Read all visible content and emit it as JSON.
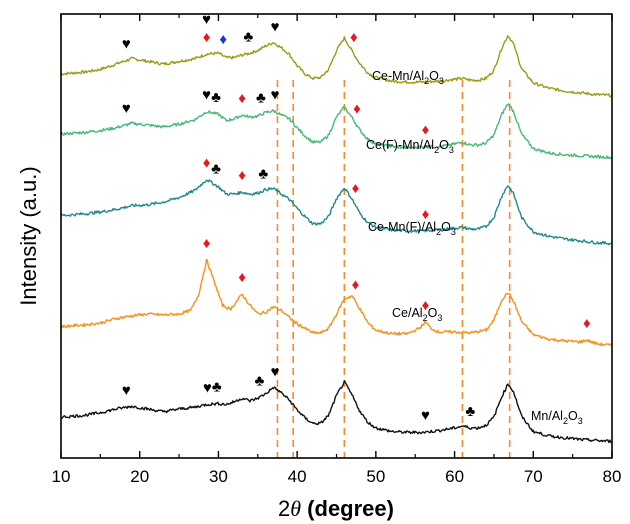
{
  "chart_data": {
    "type": "line",
    "xlabel": "2θ (degree)",
    "xlabel_parts": {
      "symbol_prefix": "2",
      "symbol": "θ",
      "rest": " (degree)"
    },
    "ylabel": "Intensity (a.u.)",
    "xlim": [
      10,
      80
    ],
    "x_ticks": [
      10,
      20,
      30,
      40,
      50,
      60,
      70,
      80
    ],
    "y_ticks": [],
    "grid": false,
    "legend": "none (inline series labels)",
    "reference_lines": {
      "style": "dashed",
      "color": "#F28A2E",
      "x": [
        37.5,
        39.5,
        46.0,
        61.0,
        67.0
      ]
    },
    "series": [
      {
        "name": "Ce-Mn/Al2O3",
        "label_parts": [
          "Ce-Mn/Al",
          "2",
          "O",
          "3"
        ],
        "color": "#9A9B17",
        "baseline": 38,
        "points": [
          [
            10,
            29
          ],
          [
            13,
            31
          ],
          [
            15,
            34
          ],
          [
            17,
            40
          ],
          [
            19,
            46
          ],
          [
            21,
            43
          ],
          [
            23,
            40
          ],
          [
            25,
            43
          ],
          [
            27,
            46
          ],
          [
            28.5,
            51
          ],
          [
            30,
            52
          ],
          [
            31,
            47
          ],
          [
            32,
            47
          ],
          [
            33,
            50
          ],
          [
            34,
            52
          ],
          [
            35,
            55
          ],
          [
            36,
            60
          ],
          [
            37,
            64
          ],
          [
            38,
            58
          ],
          [
            39,
            51
          ],
          [
            40,
            38
          ],
          [
            41,
            29
          ],
          [
            42,
            24
          ],
          [
            43,
            25
          ],
          [
            44,
            34
          ],
          [
            45,
            55
          ],
          [
            46,
            69
          ],
          [
            47,
            54
          ],
          [
            48,
            40
          ],
          [
            49,
            30
          ],
          [
            50,
            25
          ],
          [
            52,
            21
          ],
          [
            54,
            20
          ],
          [
            56,
            20
          ],
          [
            58,
            21
          ],
          [
            60,
            23
          ],
          [
            61,
            24
          ],
          [
            62,
            22
          ],
          [
            63,
            22
          ],
          [
            64,
            24
          ],
          [
            65,
            33
          ],
          [
            66,
            58
          ],
          [
            66.8,
            72
          ],
          [
            67.5,
            62
          ],
          [
            68.5,
            35
          ],
          [
            70,
            19
          ],
          [
            72,
            13
          ],
          [
            74,
            10
          ],
          [
            76,
            8
          ],
          [
            78,
            6
          ],
          [
            80,
            5
          ]
        ]
      },
      {
        "name": "Ce(F)-Mn/Al2O3",
        "label_parts": [
          "Ce(F)-Mn/Al",
          "2",
          "O",
          "3"
        ],
        "color": "#4AB77A",
        "baseline": 38,
        "points": [
          [
            10,
            31
          ],
          [
            13,
            33
          ],
          [
            15,
            35
          ],
          [
            17,
            38
          ],
          [
            19,
            43
          ],
          [
            21,
            41
          ],
          [
            23,
            39
          ],
          [
            25,
            42
          ],
          [
            27,
            47
          ],
          [
            28.5,
            56
          ],
          [
            30,
            53
          ],
          [
            31,
            46
          ],
          [
            32,
            48
          ],
          [
            33,
            52
          ],
          [
            34,
            50
          ],
          [
            35,
            51
          ],
          [
            36,
            55
          ],
          [
            37,
            57
          ],
          [
            38,
            52
          ],
          [
            39,
            48
          ],
          [
            40,
            38
          ],
          [
            41,
            29
          ],
          [
            42,
            22
          ],
          [
            43,
            22
          ],
          [
            44,
            30
          ],
          [
            45,
            50
          ],
          [
            46,
            61
          ],
          [
            47,
            49
          ],
          [
            48,
            35
          ],
          [
            49,
            25
          ],
          [
            50,
            20
          ],
          [
            52,
            17
          ],
          [
            54,
            16
          ],
          [
            56,
            17
          ],
          [
            58,
            17
          ],
          [
            60,
            20
          ],
          [
            61,
            22
          ],
          [
            62,
            19
          ],
          [
            63,
            19
          ],
          [
            64,
            21
          ],
          [
            65,
            30
          ],
          [
            66,
            53
          ],
          [
            66.8,
            65
          ],
          [
            67.5,
            56
          ],
          [
            68.5,
            31
          ],
          [
            70,
            15
          ],
          [
            72,
            10
          ],
          [
            74,
            8
          ],
          [
            76,
            7
          ],
          [
            78,
            6
          ],
          [
            80,
            5
          ]
        ]
      },
      {
        "name": "Ce-Mn(F)/Al2O3",
        "label_parts": [
          "Ce-Mn(F)/Al",
          "2",
          "O",
          "3"
        ],
        "color": "#1F8A8C",
        "baseline": 38,
        "points": [
          [
            10,
            36
          ],
          [
            13,
            38
          ],
          [
            15,
            40
          ],
          [
            17,
            43
          ],
          [
            19,
            47
          ],
          [
            21,
            48
          ],
          [
            23,
            51
          ],
          [
            25,
            56
          ],
          [
            27,
            64
          ],
          [
            28.5,
            76
          ],
          [
            30,
            68
          ],
          [
            31,
            60
          ],
          [
            32,
            60
          ],
          [
            33,
            62
          ],
          [
            34,
            60
          ],
          [
            35,
            61
          ],
          [
            36,
            65
          ],
          [
            37,
            66
          ],
          [
            38,
            60
          ],
          [
            39,
            54
          ],
          [
            40,
            44
          ],
          [
            41,
            35
          ],
          [
            42,
            27
          ],
          [
            43,
            27
          ],
          [
            44,
            35
          ],
          [
            45,
            55
          ],
          [
            46,
            67
          ],
          [
            47,
            54
          ],
          [
            48,
            38
          ],
          [
            49,
            28
          ],
          [
            50,
            23
          ],
          [
            52,
            20
          ],
          [
            54,
            19
          ],
          [
            56,
            19
          ],
          [
            58,
            20
          ],
          [
            60,
            22
          ],
          [
            61,
            23
          ],
          [
            62,
            21
          ],
          [
            63,
            21
          ],
          [
            64,
            24
          ],
          [
            65,
            34
          ],
          [
            66,
            58
          ],
          [
            66.8,
            70
          ],
          [
            67.5,
            60
          ],
          [
            68.5,
            34
          ],
          [
            70,
            18
          ],
          [
            72,
            13
          ],
          [
            74,
            10
          ],
          [
            76,
            8
          ],
          [
            78,
            6
          ],
          [
            80,
            5
          ]
        ]
      },
      {
        "name": "Ce/Al2O3",
        "label_parts": [
          "Ce/Al",
          "2",
          "O",
          "3"
        ],
        "color": "#F7901E",
        "baseline": 38,
        "points": [
          [
            10,
            26
          ],
          [
            13,
            28
          ],
          [
            15,
            30
          ],
          [
            17,
            35
          ],
          [
            19,
            38
          ],
          [
            21,
            40
          ],
          [
            23,
            39
          ],
          [
            25,
            40
          ],
          [
            26.5,
            44
          ],
          [
            27.5,
            62
          ],
          [
            28.5,
            100
          ],
          [
            29.5,
            75
          ],
          [
            30.5,
            50
          ],
          [
            31.5,
            45
          ],
          [
            32.5,
            56
          ],
          [
            33,
            62
          ],
          [
            33.8,
            52
          ],
          [
            35,
            40
          ],
          [
            36,
            42
          ],
          [
            37,
            48
          ],
          [
            38,
            44
          ],
          [
            39,
            36
          ],
          [
            40,
            29
          ],
          [
            41,
            24
          ],
          [
            42,
            19
          ],
          [
            43,
            19
          ],
          [
            44,
            24
          ],
          [
            45,
            40
          ],
          [
            46,
            57
          ],
          [
            47,
            60
          ],
          [
            48,
            45
          ],
          [
            49,
            30
          ],
          [
            50,
            22
          ],
          [
            52,
            18
          ],
          [
            54,
            18
          ],
          [
            55.5,
            24
          ],
          [
            56.3,
            31
          ],
          [
            57,
            24
          ],
          [
            58,
            20
          ],
          [
            60,
            20
          ],
          [
            62,
            19
          ],
          [
            64,
            22
          ],
          [
            65,
            33
          ],
          [
            66,
            56
          ],
          [
            66.8,
            64
          ],
          [
            67.5,
            54
          ],
          [
            68.5,
            32
          ],
          [
            70,
            17
          ],
          [
            72,
            12
          ],
          [
            74,
            10
          ],
          [
            76,
            9
          ],
          [
            76.8,
            11
          ],
          [
            78,
            7
          ],
          [
            80,
            5
          ]
        ]
      },
      {
        "name": "Mn/Al2O3",
        "label_parts": [
          "Mn/Al",
          "2",
          "O",
          "3"
        ],
        "color": "#111111",
        "baseline": 38,
        "points": [
          [
            10,
            31
          ],
          [
            13,
            33
          ],
          [
            15,
            36
          ],
          [
            17,
            40
          ],
          [
            19,
            43
          ],
          [
            21,
            40
          ],
          [
            23,
            37
          ],
          [
            25,
            40
          ],
          [
            27,
            42
          ],
          [
            28.5,
            45
          ],
          [
            30,
            46
          ],
          [
            31,
            45
          ],
          [
            32,
            48
          ],
          [
            33,
            52
          ],
          [
            34,
            49
          ],
          [
            35,
            52
          ],
          [
            36,
            57
          ],
          [
            37,
            64
          ],
          [
            38,
            58
          ],
          [
            39,
            50
          ],
          [
            40,
            39
          ],
          [
            41,
            30
          ],
          [
            42,
            24
          ],
          [
            43,
            24
          ],
          [
            44,
            33
          ],
          [
            45,
            55
          ],
          [
            46,
            70
          ],
          [
            47,
            55
          ],
          [
            48,
            37
          ],
          [
            49,
            25
          ],
          [
            50,
            19
          ],
          [
            52,
            15
          ],
          [
            54,
            14
          ],
          [
            56,
            14
          ],
          [
            58,
            16
          ],
          [
            60,
            19
          ],
          [
            61,
            21
          ],
          [
            62,
            19
          ],
          [
            63,
            19
          ],
          [
            64,
            22
          ],
          [
            65,
            31
          ],
          [
            66,
            54
          ],
          [
            66.8,
            68
          ],
          [
            67.5,
            59
          ],
          [
            68.5,
            32
          ],
          [
            70,
            15
          ],
          [
            72,
            10
          ],
          [
            74,
            8
          ],
          [
            76,
            6
          ],
          [
            78,
            5
          ],
          [
            80,
            4
          ]
        ]
      }
    ],
    "markers": [
      {
        "series": 0,
        "x": 18.3,
        "symbol": "♥",
        "color": "#000000"
      },
      {
        "series": 0,
        "x": 28.5,
        "symbol": "♦",
        "color": "#E8171F"
      },
      {
        "series": 0,
        "x": 30.6,
        "symbol": "♦",
        "color": "#1F35D6"
      },
      {
        "series": 0,
        "x": 28.5,
        "symbol": "♥",
        "color": "#000000",
        "offset": -18
      },
      {
        "series": 0,
        "x": 33.8,
        "symbol": "♣",
        "color": "#000000"
      },
      {
        "series": 0,
        "x": 37.2,
        "symbol": "♥",
        "color": "#000000"
      },
      {
        "series": 0,
        "x": 47.2,
        "symbol": "♦",
        "color": "#E8171F"
      },
      {
        "series": 1,
        "x": 18.3,
        "symbol": "♥",
        "color": "#000000"
      },
      {
        "series": 1,
        "x": 28.5,
        "symbol": "♥",
        "color": "#000000"
      },
      {
        "series": 1,
        "x": 29.7,
        "symbol": "♣",
        "color": "#000000"
      },
      {
        "series": 1,
        "x": 33.0,
        "symbol": "♦",
        "color": "#E8171F"
      },
      {
        "series": 1,
        "x": 35.4,
        "symbol": "♣",
        "color": "#000000"
      },
      {
        "series": 1,
        "x": 37.2,
        "symbol": "♥",
        "color": "#000000"
      },
      {
        "series": 1,
        "x": 47.6,
        "symbol": "♦",
        "color": "#E8171F"
      },
      {
        "series": 1,
        "x": 56.3,
        "symbol": "♦",
        "color": "#E8171F"
      },
      {
        "series": 2,
        "x": 28.5,
        "symbol": "♦",
        "color": "#E8171F"
      },
      {
        "series": 2,
        "x": 29.7,
        "symbol": "♣",
        "color": "#000000"
      },
      {
        "series": 2,
        "x": 33.0,
        "symbol": "♦",
        "color": "#E8171F"
      },
      {
        "series": 2,
        "x": 35.7,
        "symbol": "♣",
        "color": "#000000"
      },
      {
        "series": 2,
        "x": 47.4,
        "symbol": "♦",
        "color": "#E8171F"
      },
      {
        "series": 2,
        "x": 56.3,
        "symbol": "♦",
        "color": "#E8171F"
      },
      {
        "series": 3,
        "x": 28.5,
        "symbol": "♦",
        "color": "#E8171F"
      },
      {
        "series": 3,
        "x": 33.0,
        "symbol": "♦",
        "color": "#E8171F"
      },
      {
        "series": 3,
        "x": 47.4,
        "symbol": "♦",
        "color": "#E8171F"
      },
      {
        "series": 3,
        "x": 56.3,
        "symbol": "♦",
        "color": "#E8171F"
      },
      {
        "series": 3,
        "x": 76.8,
        "symbol": "♦",
        "color": "#E8171F"
      },
      {
        "series": 4,
        "x": 18.3,
        "symbol": "♥",
        "color": "#000000"
      },
      {
        "series": 4,
        "x": 28.6,
        "symbol": "♥",
        "color": "#000000"
      },
      {
        "series": 4,
        "x": 29.8,
        "symbol": "♣",
        "color": "#000000"
      },
      {
        "series": 4,
        "x": 35.2,
        "symbol": "♣",
        "color": "#000000"
      },
      {
        "series": 4,
        "x": 37.2,
        "symbol": "♥",
        "color": "#000000"
      },
      {
        "series": 4,
        "x": 56.3,
        "symbol": "♥",
        "color": "#000000"
      },
      {
        "series": 4,
        "x": 62.0,
        "symbol": "♣",
        "color": "#000000"
      }
    ]
  }
}
